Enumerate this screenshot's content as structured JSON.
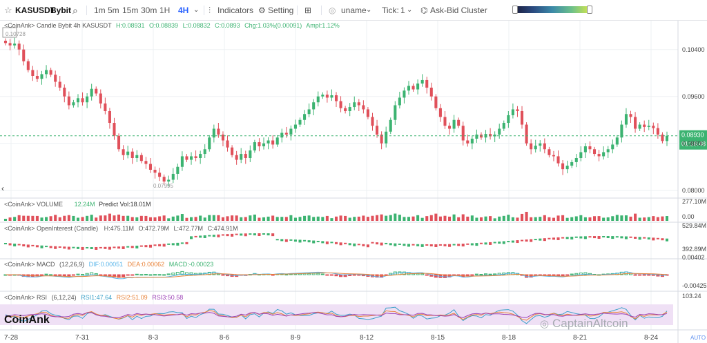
{
  "toolbar": {
    "symbol": "KASUSDT",
    "exchange": "Bybit",
    "intervals": [
      "1m",
      "5m",
      "15m",
      "30m",
      "1H",
      "4H"
    ],
    "active_interval": "4H",
    "indicators_label": "Indicators",
    "setting_label": "Setting",
    "uname_label": "uname",
    "tick_label": "Tick:",
    "tick_value": "1",
    "cluster_label": "Ask-Bid Cluster"
  },
  "legend": {
    "candle": {
      "prefix": "<CoinAnk> Candle  Bybit 4h KASUSDT",
      "h": "H:0.08931",
      "o": "O:0.08839",
      "l": "L:0.08832",
      "c": "C:0.0893",
      "chg": "Chg:1.03%(0.00091)",
      "ampl": "Ampl:1.12%"
    },
    "volume": {
      "prefix": "<CoinAnk> VOLUME",
      "value": "12.24M",
      "predict": "Predict Vol:18.01M"
    },
    "oi": {
      "prefix": "<CoinAnk> OpenInterest (Candle)",
      "h": "H:475.11M",
      "o": "O:472.79M",
      "l": "L:472.77M",
      "c": "C:474.91M"
    },
    "macd": {
      "prefix": "<CoinAnk> MACD",
      "params": "(12,26,9)",
      "dif": "DIF:0.00051",
      "dea": "DEA:0.00062",
      "macd": "MACD:-0.00023"
    },
    "rsi": {
      "prefix": "<CoinAnk> RSI",
      "params": "(6,12,24)",
      "rsi1": "RSI1:47.64",
      "rsi2": "RSI2:51.09",
      "rsi3": "RSI3:50.58"
    }
  },
  "price_axis": {
    "ticks": [
      "0.10400",
      "0.09600",
      "0.08800",
      "0.08000"
    ],
    "last_price": "0.08930",
    "countdown": "01:16:48",
    "high_marker": "0.10728",
    "low_marker": "0.07995"
  },
  "volume_axis": {
    "top": "277.10M",
    "bottom": "0.00"
  },
  "oi_axis": {
    "top": "529.84M",
    "bottom": "392.89M"
  },
  "macd_axis": {
    "top": "0.00402",
    "bottom": "-0.00425"
  },
  "rsi_axis": {
    "top": "103.24"
  },
  "x_axis": {
    "labels": [
      "7-28",
      "7-31",
      "8-3",
      "8-6",
      "8-9",
      "8-12",
      "8-15",
      "8-18",
      "8-21",
      "8-24"
    ],
    "auto_label": "AUTO"
  },
  "watermarks": {
    "brand": "CoinAnk",
    "site": "CaptainAltcoin"
  },
  "colors": {
    "up": "#3cb371",
    "down": "#e0505a",
    "accent": "#2962ff",
    "dif": "#56b4e9",
    "dea": "#e8833a",
    "rsi1": "#3aa0c8",
    "rsi2": "#e8833a",
    "rsi3": "#9b3fb5"
  },
  "chart_data": {
    "type": "candlestick",
    "symbol": "KASUSDT",
    "interval": "4h",
    "ylim": [
      0.0795,
      0.1075
    ],
    "close": [
      0.1051,
      0.1047,
      0.105,
      0.104,
      0.102,
      0.1005,
      0.0995,
      0.099,
      0.0998,
      0.1005,
      0.0997,
      0.0985,
      0.0975,
      0.096,
      0.0945,
      0.095,
      0.0957,
      0.095,
      0.096,
      0.0973,
      0.0965,
      0.0948,
      0.0935,
      0.0915,
      0.0893,
      0.087,
      0.086,
      0.0866,
      0.0855,
      0.086,
      0.085,
      0.0845,
      0.0835,
      0.083,
      0.0823,
      0.0815,
      0.0818,
      0.0828,
      0.084,
      0.0858,
      0.0852,
      0.0858,
      0.0855,
      0.0862,
      0.087,
      0.089,
      0.0905,
      0.0895,
      0.0885,
      0.0873,
      0.086,
      0.0852,
      0.0862,
      0.0855,
      0.0868,
      0.0882,
      0.0875,
      0.088,
      0.0885,
      0.0878,
      0.089,
      0.0898,
      0.0895,
      0.0905,
      0.0912,
      0.092,
      0.093,
      0.0938,
      0.095,
      0.096,
      0.0963,
      0.0958,
      0.0962,
      0.0952,
      0.094,
      0.0935,
      0.0942,
      0.095,
      0.0945,
      0.0938,
      0.0925,
      0.091,
      0.0895,
      0.088,
      0.09,
      0.092,
      0.0945,
      0.0958,
      0.097,
      0.0978,
      0.0972,
      0.0982,
      0.0988,
      0.0975,
      0.096,
      0.094,
      0.0925,
      0.091,
      0.0905,
      0.092,
      0.091,
      0.0885,
      0.088,
      0.0888,
      0.0895,
      0.089,
      0.0896,
      0.0892,
      0.0895,
      0.0905,
      0.0915,
      0.0928,
      0.0938,
      0.0935,
      0.0912,
      0.088,
      0.087,
      0.0876,
      0.088,
      0.087,
      0.086,
      0.0858,
      0.0846,
      0.0836,
      0.0842,
      0.0848,
      0.0855,
      0.0865,
      0.0875,
      0.087,
      0.0862,
      0.0858,
      0.0865,
      0.087,
      0.0878,
      0.089,
      0.0912,
      0.093,
      0.0925,
      0.0905,
      0.0912,
      0.0908,
      0.091,
      0.0906,
      0.0895,
      0.0884,
      0.0893
    ],
    "high_marker": 0.10728,
    "low_marker": 0.07995,
    "last_price": 0.0893
  }
}
